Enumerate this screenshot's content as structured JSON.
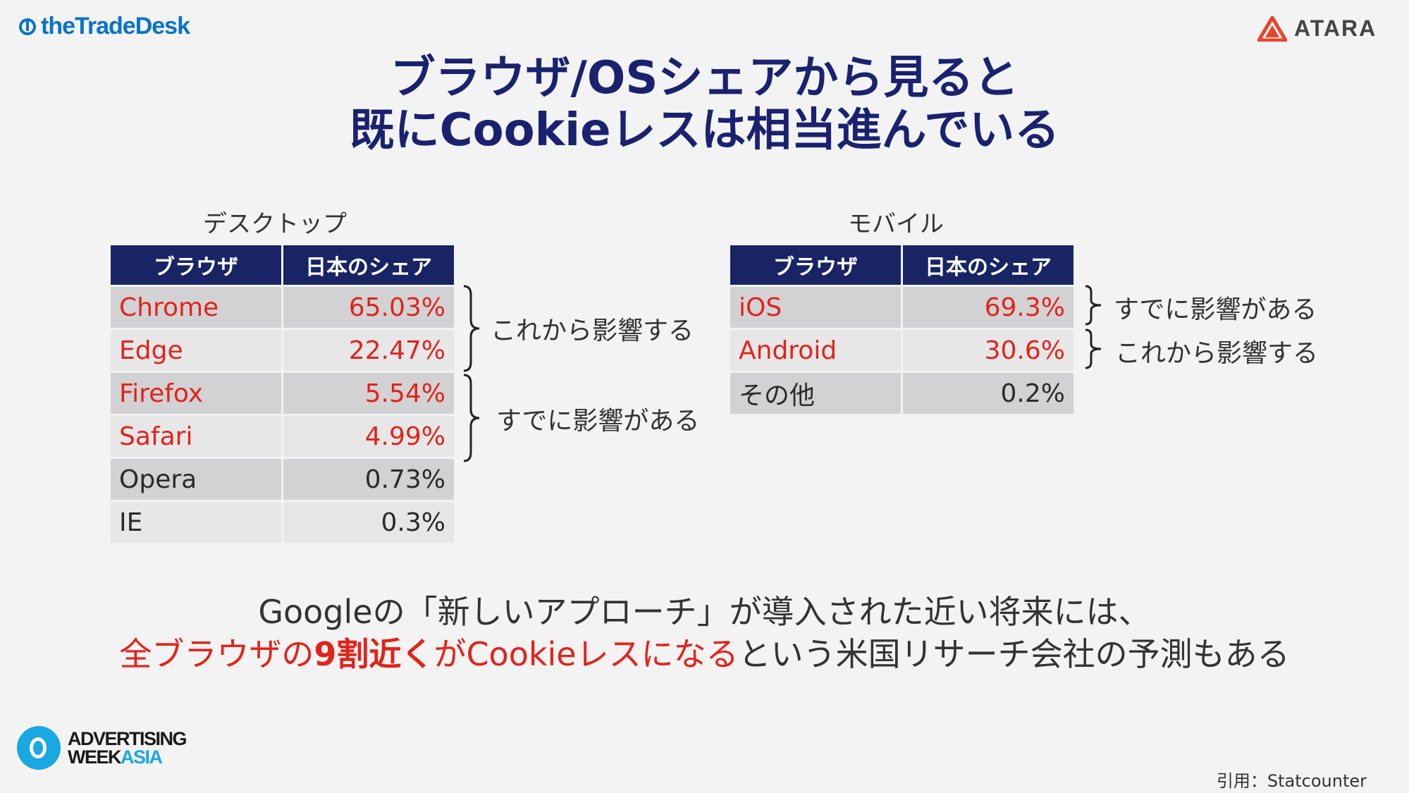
{
  "logos": {
    "tradedesk": "theTradeDesk",
    "atara": "ATARA",
    "advertising_week_line1": "ADVERTISING",
    "advertising_week_line2a": "WEEK",
    "advertising_week_line2b": "ASIA"
  },
  "title": {
    "line1": "ブラウザ/OSシェアから見ると",
    "line2": "既にCookieレスは相当進んでいる"
  },
  "desktop": {
    "caption": "デスクトップ",
    "headers": [
      "ブラウザ",
      "日本のシェア"
    ],
    "rows": [
      {
        "browser": "Chrome",
        "share": "65.03%"
      },
      {
        "browser": "Edge",
        "share": "22.47%"
      },
      {
        "browser": "Firefox",
        "share": "5.54%"
      },
      {
        "browser": "Safari",
        "share": "4.99%"
      },
      {
        "browser": "Opera",
        "share": "0.73%"
      },
      {
        "browser": "IE",
        "share": "0.3%"
      }
    ],
    "notes": [
      "これから影響する",
      "すでに影響がある"
    ]
  },
  "mobile": {
    "caption": "モバイル",
    "headers": [
      "ブラウザ",
      "日本のシェア"
    ],
    "rows": [
      {
        "browser": "iOS",
        "share": "69.3%"
      },
      {
        "browser": "Android",
        "share": "30.6%"
      },
      {
        "browser": "その他",
        "share": "0.2%"
      }
    ],
    "notes": [
      "すでに影響がある",
      "これから影響する"
    ]
  },
  "statement": {
    "line1": "Googleの「新しいアプローチ」が導入された近い将来には、",
    "line2_part1": "全ブラウザの",
    "line2_part2": "9割近く",
    "line2_part3": "がCookieレスになる",
    "line2_part4": "という米国リサーチ会社の予測もある"
  },
  "citation": "引用：Statcounter",
  "colors": {
    "navy": "#182464",
    "title": "#1a2270",
    "highlight_red": "#e2231a",
    "tradedesk_blue": "#0a73c9",
    "atara_orange": "#e8452a",
    "awa_blue": "#19a8e0"
  }
}
